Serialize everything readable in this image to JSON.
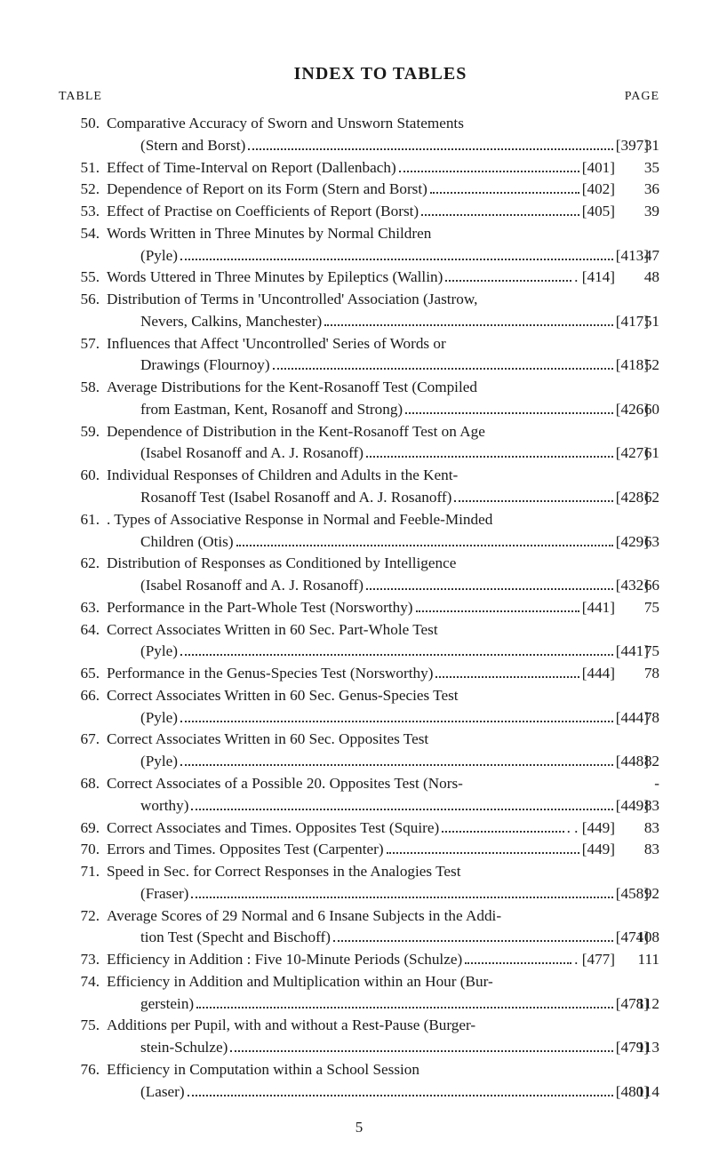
{
  "title": "INDEX TO TABLES",
  "header_left": "TABLE",
  "header_right": "PAGE",
  "page_number": "5",
  "entries": [
    {
      "num": "50.",
      "page": "31",
      "lines": [
        {
          "t": "Comparative Accuracy of Sworn and Unsworn Statements"
        },
        {
          "t": "(Stern and Borst)",
          "ref": "[397]",
          "hang": true
        }
      ]
    },
    {
      "num": "51.",
      "page": "35",
      "lines": [
        {
          "t": "Effect of Time-Interval on Report (Dallenbach)",
          "ref": "[401]"
        }
      ]
    },
    {
      "num": "52.",
      "page": "36",
      "lines": [
        {
          "t": "Dependence of Report on its Form (Stern and Borst)",
          "ref": "[402]"
        }
      ]
    },
    {
      "num": "53.",
      "page": "39",
      "lines": [
        {
          "t": "Effect of Practise on Coefficients of Report (Borst)",
          "ref": "[405]"
        }
      ]
    },
    {
      "num": "54.",
      "page": "47",
      "lines": [
        {
          "t": "Words Written in Three Minutes by Normal Children"
        },
        {
          "t": "(Pyle)",
          "ref": "[413]",
          "hang": true
        }
      ]
    },
    {
      "num": "55.",
      "page": "48",
      "lines": [
        {
          "t": "Words Uttered in Three Minutes by Epileptics (Wallin)",
          "ref": ". [414]"
        }
      ]
    },
    {
      "num": "56.",
      "page": "51",
      "lines": [
        {
          "t": "Distribution of Terms in 'Uncontrolled' Association (Jastrow,"
        },
        {
          "t": "Nevers, Calkins, Manchester)",
          "ref": "[417]",
          "hang": true
        }
      ]
    },
    {
      "num": "57.",
      "page": "52",
      "lines": [
        {
          "t": "Influences that Affect 'Uncontrolled' Series of Words or"
        },
        {
          "t": "Drawings (Flournoy)",
          "ref": "[418]",
          "hang": true
        }
      ]
    },
    {
      "num": "58.",
      "page": "60",
      "lines": [
        {
          "t": "Average Distributions for the Kent-Rosanoff Test (Compiled"
        },
        {
          "t": "from Eastman, Kent, Rosanoff and Strong)",
          "ref": "[426]",
          "hang": true
        }
      ]
    },
    {
      "num": "59.",
      "page": "61",
      "lines": [
        {
          "t": "Dependence of Distribution in the Kent-Rosanoff Test on Age"
        },
        {
          "t": "(Isabel Rosanoff and A. J. Rosanoff)",
          "ref": "[427]",
          "hang": true
        }
      ]
    },
    {
      "num": "60.",
      "page": "62",
      "lines": [
        {
          "t": "Individual Responses of Children and Adults in the Kent-"
        },
        {
          "t": "Rosanoff Test (Isabel Rosanoff and A. J. Rosanoff)",
          "ref": "[428]",
          "hang": true
        }
      ]
    },
    {
      "num": "61.",
      "page": "63",
      "lines": [
        {
          "t": ". Types of Associative Response in Normal and Feeble-Minded"
        },
        {
          "t": "Children (Otis)",
          "ref": "[429]",
          "hang": true
        }
      ]
    },
    {
      "num": "62.",
      "page": "66",
      "lines": [
        {
          "t": "Distribution of Responses as Conditioned by Intelligence"
        },
        {
          "t": "(Isabel Rosanoff and A. J. Rosanoff)",
          "ref": "[432]",
          "hang": true
        }
      ]
    },
    {
      "num": "63.",
      "page": "75",
      "lines": [
        {
          "t": "Performance in the Part-Whole Test (Norsworthy)",
          "ref": "[441]"
        }
      ]
    },
    {
      "num": "64.",
      "page": "75",
      "lines": [
        {
          "t": "Correct Associates Written in 60 Sec. Part-Whole Test"
        },
        {
          "t": "(Pyle)",
          "ref": "[441]",
          "hang": true
        }
      ]
    },
    {
      "num": "65.",
      "page": "78",
      "lines": [
        {
          "t": "Performance in the Genus-Species Test (Norsworthy)",
          "ref": "[444]"
        }
      ]
    },
    {
      "num": "66.",
      "page": "78",
      "lines": [
        {
          "t": "Correct Associates Written in 60 Sec. Genus-Species Test"
        },
        {
          "t": "(Pyle)",
          "ref": "[444]",
          "hang": true
        }
      ]
    },
    {
      "num": "67.",
      "page": "82",
      "lines": [
        {
          "t": "Correct Associates Written in 60 Sec. Opposites Test"
        },
        {
          "t": "(Pyle)",
          "ref": "[448]",
          "hang": true
        }
      ]
    },
    {
      "num": "68.",
      "page": "-",
      "lines": [
        {
          "t": "Correct Associates of a Possible 20. Opposites Test (Nors-"
        },
        {
          "t": "worthy)",
          "ref": "[449]",
          "hang": true
        }
      ],
      "page2": "83"
    },
    {
      "num": "69.",
      "page": "83",
      "lines": [
        {
          "t": "Correct Associates and Times. Opposites Test (Squire)",
          "ref": ". . [449]"
        }
      ]
    },
    {
      "num": "70.",
      "page": "83",
      "lines": [
        {
          "t": "Errors and Times. Opposites Test (Carpenter)",
          "ref": "[449]"
        }
      ]
    },
    {
      "num": "71.",
      "page": "92",
      "lines": [
        {
          "t": "Speed in Sec. for Correct Responses in the Analogies Test"
        },
        {
          "t": "(Fraser)",
          "ref": "[458]",
          "hang": true
        }
      ]
    },
    {
      "num": "72.",
      "page": "108",
      "lines": [
        {
          "t": "Average Scores of 29 Normal and 6 Insane Subjects in the Addi-"
        },
        {
          "t": "tion Test (Specht and Bischoff)",
          "ref": "[474]",
          "hang": true
        }
      ]
    },
    {
      "num": "73.",
      "page": "111",
      "lines": [
        {
          "t": "Efficiency in Addition : Five 10-Minute Periods (Schulze)",
          "ref": ". [477]"
        }
      ]
    },
    {
      "num": "74.",
      "page": "112",
      "lines": [
        {
          "t": "Efficiency in Addition and Multiplication within an Hour (Bur-"
        },
        {
          "t": "gerstein)",
          "ref": "[478]",
          "hang": true
        }
      ]
    },
    {
      "num": "75.",
      "page": "113",
      "lines": [
        {
          "t": "Additions per Pupil, with and without a Rest-Pause (Burger-"
        },
        {
          "t": "stein-Schulze)",
          "ref": "[479]",
          "hang": true
        }
      ]
    },
    {
      "num": "76.",
      "page": "114",
      "lines": [
        {
          "t": "Efficiency in Computation within a School Session"
        },
        {
          "t": "(Laser)",
          "ref": "[480]",
          "hang": true
        }
      ]
    }
  ]
}
